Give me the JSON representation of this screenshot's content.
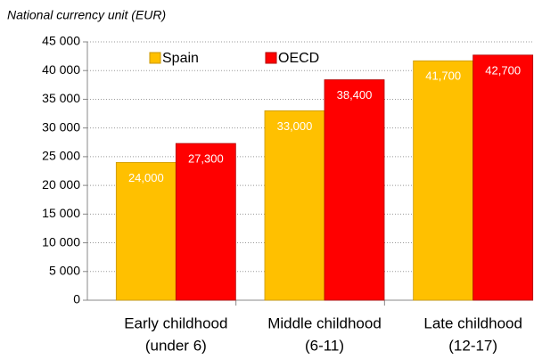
{
  "chart_data": {
    "type": "bar",
    "y_axis_title": "National currency unit (EUR)",
    "categories": [
      [
        "Early childhood",
        "(under 6)"
      ],
      [
        "Middle childhood",
        "(6-11)"
      ],
      [
        "Late childhood",
        "(12-17)"
      ]
    ],
    "series": [
      {
        "name": "Spain",
        "color": "#ffc000",
        "values": [
          24000,
          33000,
          41700
        ],
        "value_labels": [
          "24,000",
          "33,000",
          "41,700"
        ]
      },
      {
        "name": "OECD",
        "color": "#ff0000",
        "values": [
          27300,
          38400,
          42700
        ],
        "value_labels": [
          "27,300",
          "38,400",
          "42,700"
        ]
      }
    ],
    "ylim": [
      0,
      45000
    ],
    "yticks": [
      {
        "value": 0,
        "label": "0"
      },
      {
        "value": 5000,
        "label": "5 000"
      },
      {
        "value": 10000,
        "label": "10 000"
      },
      {
        "value": 15000,
        "label": "15 000"
      },
      {
        "value": 20000,
        "label": "20 000"
      },
      {
        "value": 25000,
        "label": "25 000"
      },
      {
        "value": 30000,
        "label": "30 000"
      },
      {
        "value": 35000,
        "label": "35 000"
      },
      {
        "value": 40000,
        "label": "40 000"
      },
      {
        "value": 45000,
        "label": "45 000"
      }
    ],
    "grid": true
  }
}
